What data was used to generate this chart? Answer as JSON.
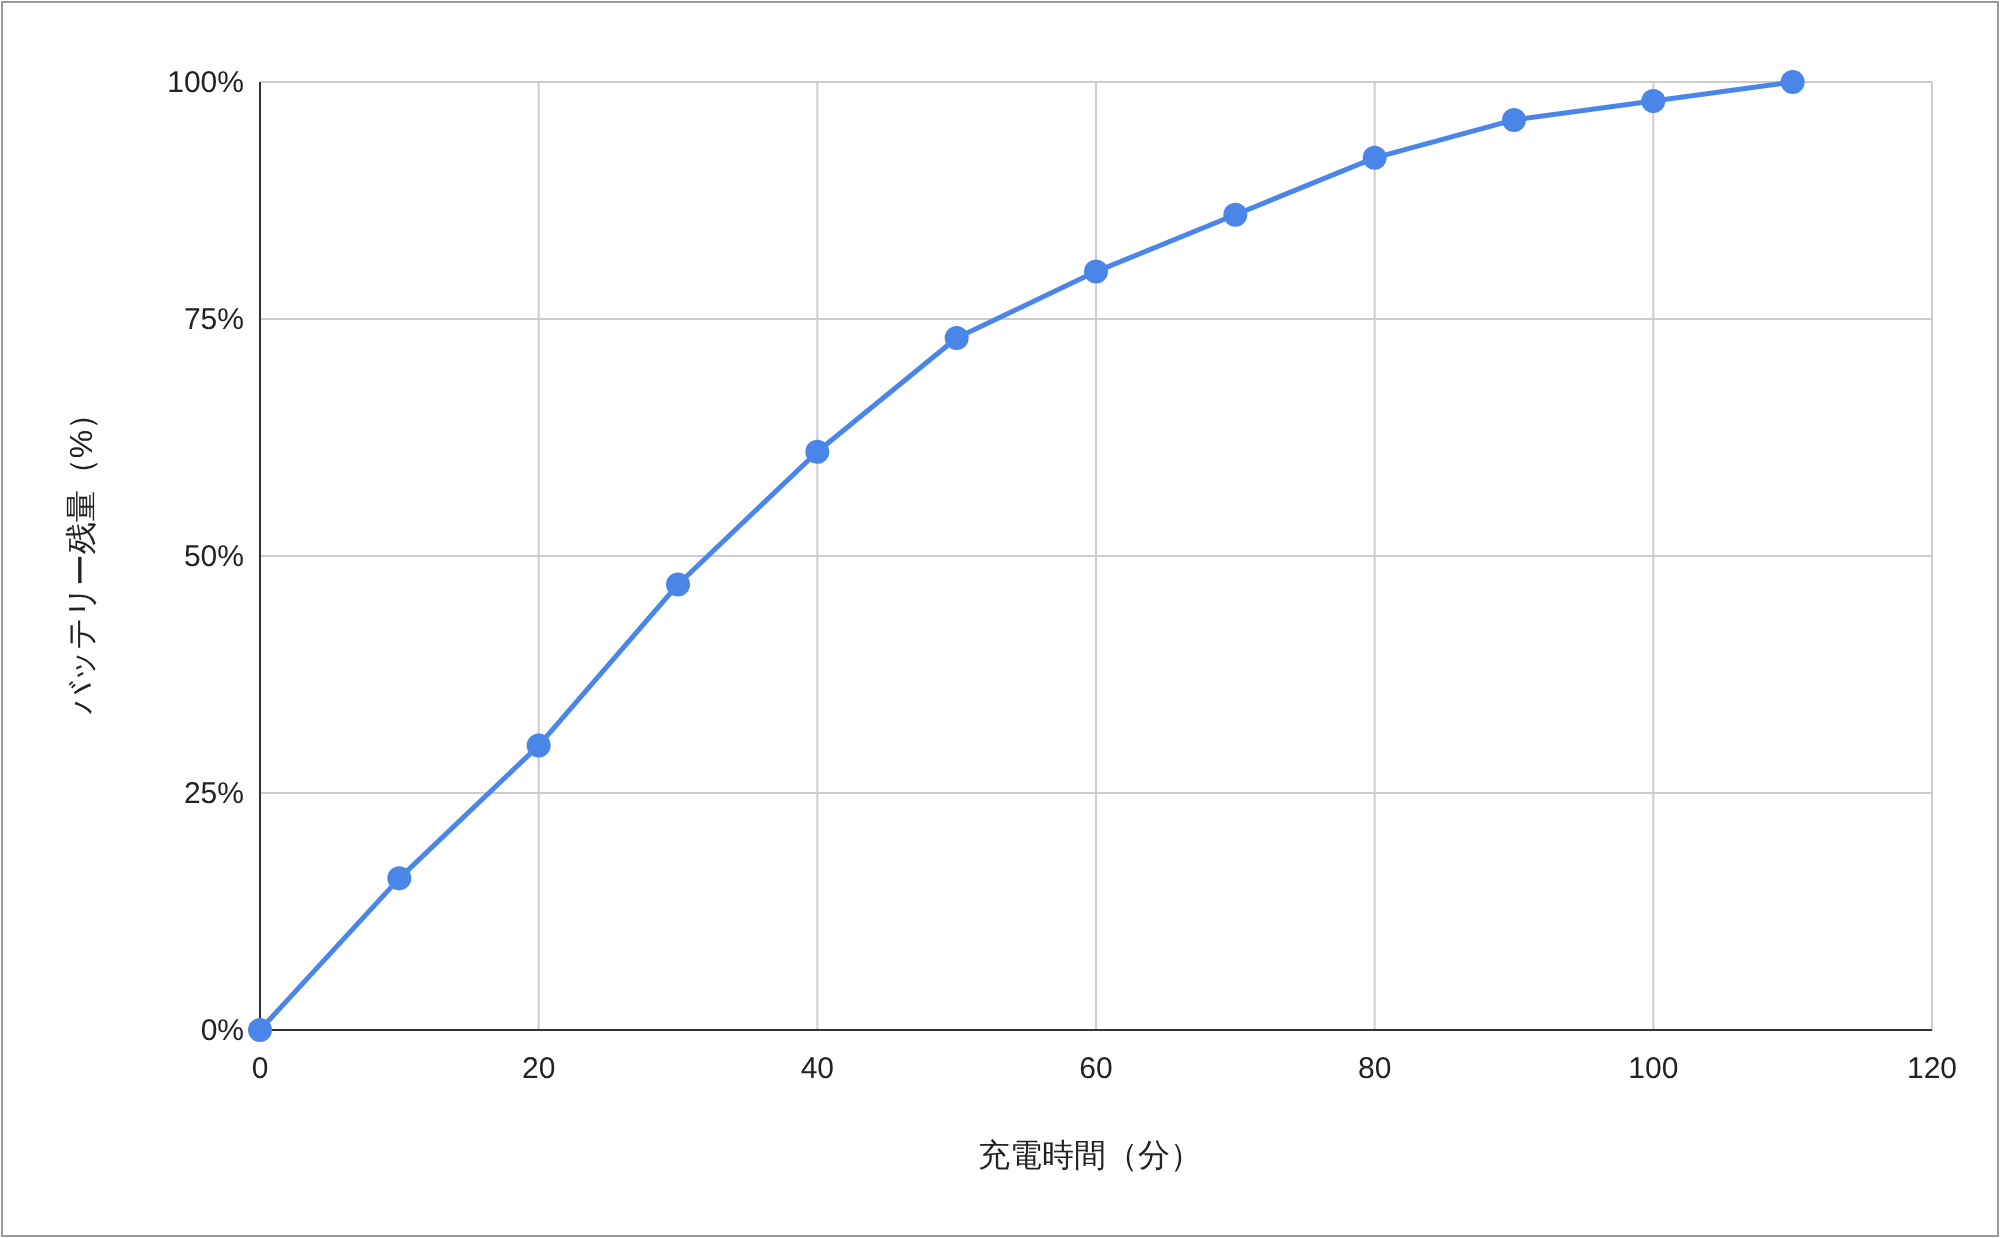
{
  "chart_data": {
    "type": "line",
    "xlabel": "充電時間（分）",
    "ylabel": "バッテリー残量（%）",
    "x": [
      0,
      10,
      20,
      30,
      40,
      50,
      60,
      70,
      80,
      90,
      100,
      110
    ],
    "series": [
      {
        "color": "#4a86e8",
        "values": [
          0,
          16,
          30,
          47,
          61,
          73,
          80,
          86,
          92,
          96,
          98,
          100
        ]
      }
    ],
    "xlim": [
      0,
      120
    ],
    "xticks": [
      0,
      20,
      40,
      60,
      80,
      100,
      120
    ],
    "ylim": [
      0,
      100
    ],
    "yticks": [
      {
        "value": 0,
        "label": "0%"
      },
      {
        "value": 25,
        "label": "25%"
      },
      {
        "value": 50,
        "label": "50%"
      },
      {
        "value": 75,
        "label": "75%"
      },
      {
        "value": 100,
        "label": "100%"
      }
    ],
    "grid": true,
    "marker": "circle",
    "line_style": "solid"
  }
}
